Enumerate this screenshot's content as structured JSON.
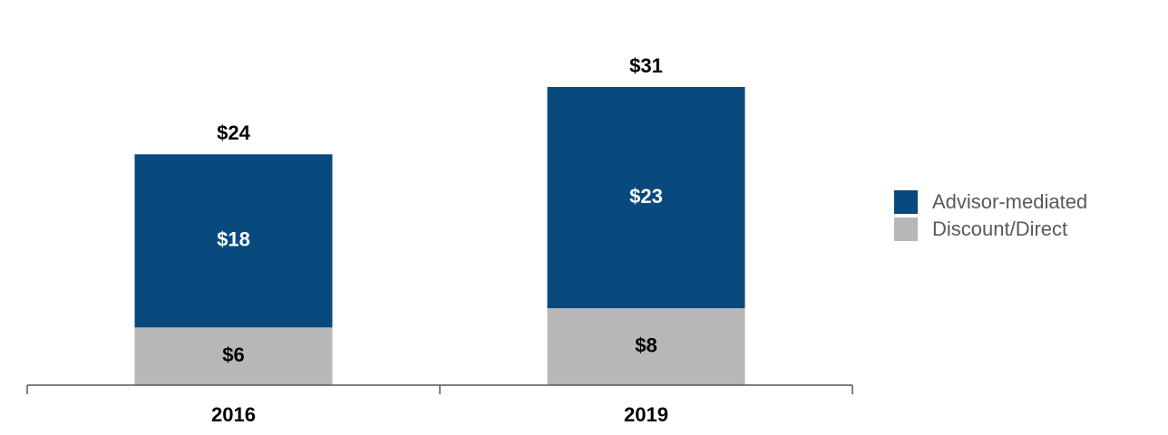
{
  "chart_data": {
    "type": "stacked_bar",
    "categories": [
      "2016",
      "2019"
    ],
    "series": [
      {
        "name": "Discount/Direct",
        "color": "#b7b7b7",
        "values": [
          6,
          8
        ],
        "value_labels": [
          "$6",
          "$8"
        ]
      },
      {
        "name": "Advisor-mediated",
        "color": "#08497e",
        "values": [
          18,
          23
        ],
        "value_labels": [
          "$18",
          "$23"
        ]
      }
    ],
    "totals": [
      24,
      31
    ],
    "total_labels": [
      "$24",
      "$31"
    ]
  }
}
